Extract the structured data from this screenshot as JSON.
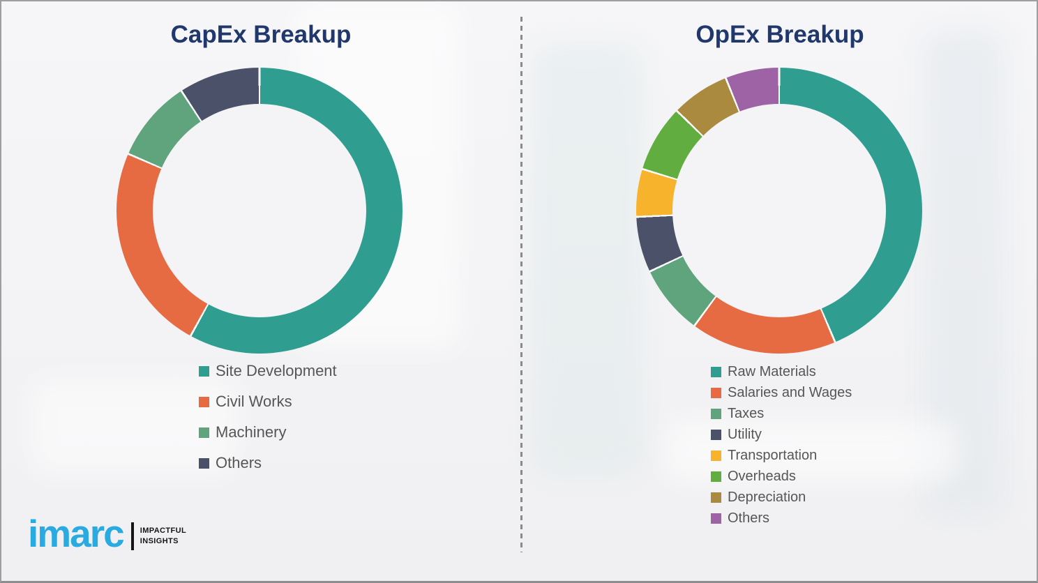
{
  "chart_data": [
    {
      "id": "capex",
      "type": "pie",
      "subtype": "donut",
      "title": "CapEx Breakup",
      "categories": [
        "Site Development",
        "Civil Works",
        "Machinery",
        "Others"
      ],
      "values": [
        58.0,
        23.5,
        9.3,
        9.2
      ],
      "units": "percent-estimated-from-arc-angles",
      "colors": [
        "#2f9e91",
        "#e66a42",
        "#5fa47c",
        "#4b5168"
      ],
      "start_angle_deg": 0,
      "direction": "clockwise",
      "legend_position": "below-left",
      "data_labels": false
    },
    {
      "id": "opex",
      "type": "pie",
      "subtype": "donut",
      "title": "OpEx Breakup",
      "categories": [
        "Raw Materials",
        "Salaries and Wages",
        "Taxes",
        "Utility",
        "Transportation",
        "Overheads",
        "Depreciation",
        "Others"
      ],
      "values": [
        43.6,
        16.5,
        7.9,
        6.3,
        5.4,
        7.6,
        6.6,
        6.1
      ],
      "units": "percent-estimated-from-arc-angles",
      "colors": [
        "#2f9e91",
        "#e66a42",
        "#5fa47c",
        "#4b5168",
        "#f6b32b",
        "#62ad3f",
        "#a98a3e",
        "#9d63a5"
      ],
      "start_angle_deg": 0,
      "direction": "clockwise",
      "legend_position": "below-left",
      "data_labels": false
    }
  ],
  "logo": {
    "brand": "imarc",
    "tagline_line1": "IMPACTFUL",
    "tagline_line2": "INSIGHTS",
    "brand_color": "#29abe2"
  },
  "style": {
    "title_color": "#20386b",
    "legend_text_color": "#565656",
    "divider_color": "#8a8a8a",
    "segment_gap_color": "#fafafa"
  }
}
